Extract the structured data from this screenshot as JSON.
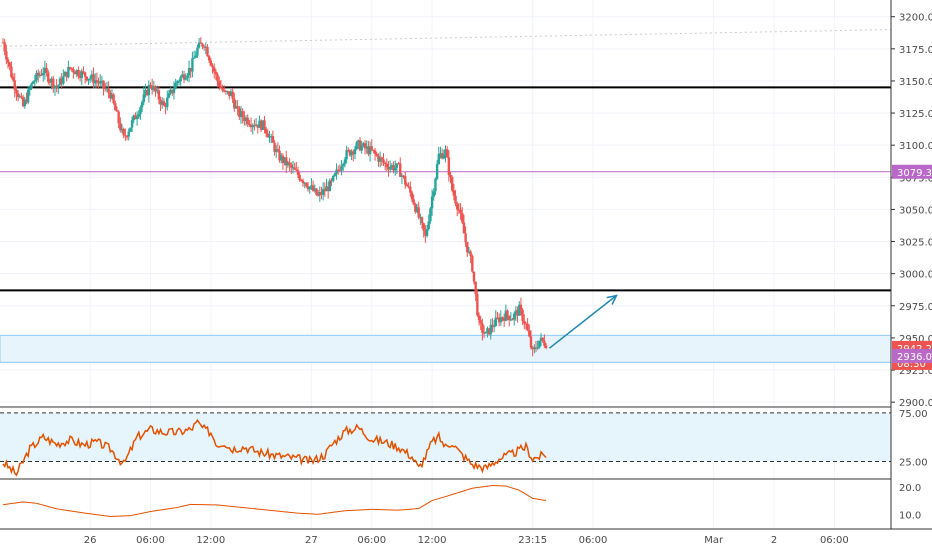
{
  "chart_data": {
    "type": "candlestick",
    "price_pane": {
      "yaxis_ticks": [
        2900,
        2925,
        2950,
        2975,
        3000,
        3025,
        3050,
        3075,
        3100,
        3125,
        3150,
        3175,
        3200
      ],
      "ytick_labels": [
        "2900.0",
        "2925.0",
        "2950.0",
        "2975.0",
        "3000.0",
        "3025.0",
        "3050.0",
        "3075.0",
        "3100.0",
        "3125.0",
        "3150.0",
        "3175.0",
        "3200.0"
      ],
      "ylim": [
        2897,
        3213
      ],
      "horizontal_lines": [
        {
          "value": 3145,
          "color": "#000000",
          "style": "solid"
        },
        {
          "value": 2987,
          "color": "#000000",
          "style": "solid"
        },
        {
          "value": 3079.3,
          "color": "#ba68c8",
          "style": "solid"
        }
      ],
      "support_zone": {
        "from": 2931,
        "to": 2952,
        "color": "#e8f4fb"
      },
      "price_badges": [
        {
          "label": "3079.3",
          "value": 3079.3,
          "color": "#ba68c8"
        },
        {
          "label": "2942.2",
          "value": 2942.2,
          "color": "#ef5350"
        },
        {
          "label": "08:30",
          "value": 2930.5,
          "color": "#ef5350"
        },
        {
          "label": "2936.0",
          "value": 2936.0,
          "color": "#ba68c8"
        }
      ],
      "trend_dotted_line": {
        "from_value": 3177,
        "to_value": 3190
      },
      "arrow": {
        "from": [
          163,
          2942
        ],
        "to": [
          183,
          2983
        ],
        "color": "#1e88b6"
      },
      "ohlc_anchors": [
        [
          0,
          3180
        ],
        [
          3,
          3150
        ],
        [
          6,
          3130
        ],
        [
          9,
          3150
        ],
        [
          12,
          3158
        ],
        [
          16,
          3145
        ],
        [
          20,
          3160
        ],
        [
          24,
          3155
        ],
        [
          28,
          3150
        ],
        [
          32,
          3140
        ],
        [
          36,
          3105
        ],
        [
          40,
          3125
        ],
        [
          44,
          3148
        ],
        [
          48,
          3130
        ],
        [
          52,
          3150
        ],
        [
          56,
          3160
        ],
        [
          58,
          3175
        ],
        [
          60,
          3180
        ],
        [
          62,
          3165
        ],
        [
          64,
          3150
        ],
        [
          66,
          3140
        ],
        [
          68,
          3140
        ],
        [
          70,
          3125
        ],
        [
          74,
          3118
        ],
        [
          78,
          3115
        ],
        [
          82,
          3092
        ],
        [
          86,
          3082
        ],
        [
          90,
          3072
        ],
        [
          94,
          3060
        ],
        [
          98,
          3070
        ],
        [
          102,
          3092
        ],
        [
          106,
          3100
        ],
        [
          110,
          3095
        ],
        [
          114,
          3085
        ],
        [
          118,
          3082
        ],
        [
          122,
          3060
        ],
        [
          126,
          3028
        ],
        [
          128,
          3060
        ],
        [
          130,
          3092
        ],
        [
          132,
          3095
        ],
        [
          134,
          3065
        ],
        [
          136,
          3050
        ],
        [
          138,
          3025
        ],
        [
          140,
          3005
        ],
        [
          142,
          2960
        ],
        [
          144,
          2952
        ],
        [
          146,
          2960
        ],
        [
          148,
          2965
        ],
        [
          150,
          2968
        ],
        [
          152,
          2966
        ],
        [
          154,
          2972
        ],
        [
          156,
          2960
        ],
        [
          158,
          2938
        ],
        [
          160,
          2948
        ],
        [
          162,
          2946
        ]
      ]
    },
    "rsi_pane": {
      "yaxis_ticks": [
        25,
        75
      ],
      "ytick_labels": [
        "25.00",
        "75.00"
      ],
      "ylim": [
        8,
        80
      ],
      "band": {
        "from": 25,
        "to": 75,
        "color": "#e6f5fb"
      },
      "color": "#e65100",
      "anchors": [
        [
          0,
          24
        ],
        [
          4,
          12
        ],
        [
          8,
          38
        ],
        [
          12,
          50
        ],
        [
          16,
          43
        ],
        [
          20,
          47
        ],
        [
          24,
          42
        ],
        [
          28,
          45
        ],
        [
          32,
          38
        ],
        [
          36,
          22
        ],
        [
          40,
          50
        ],
        [
          44,
          58
        ],
        [
          48,
          55
        ],
        [
          52,
          55
        ],
        [
          56,
          58
        ],
        [
          58,
          65
        ],
        [
          60,
          58
        ],
        [
          62,
          55
        ],
        [
          64,
          42
        ],
        [
          66,
          45
        ],
        [
          68,
          38
        ],
        [
          72,
          40
        ],
        [
          76,
          35
        ],
        [
          80,
          32
        ],
        [
          84,
          30
        ],
        [
          88,
          28
        ],
        [
          92,
          25
        ],
        [
          96,
          32
        ],
        [
          98,
          42
        ],
        [
          102,
          56
        ],
        [
          106,
          60
        ],
        [
          110,
          48
        ],
        [
          114,
          45
        ],
        [
          118,
          40
        ],
        [
          122,
          30
        ],
        [
          124,
          18
        ],
        [
          126,
          30
        ],
        [
          128,
          45
        ],
        [
          130,
          50
        ],
        [
          132,
          40
        ],
        [
          134,
          45
        ],
        [
          136,
          35
        ],
        [
          140,
          22
        ],
        [
          144,
          18
        ],
        [
          148,
          28
        ],
        [
          152,
          33
        ],
        [
          156,
          40
        ],
        [
          158,
          28
        ],
        [
          160,
          30
        ],
        [
          162,
          32
        ]
      ]
    },
    "lower_pane": {
      "yaxis_ticks": [
        10,
        20
      ],
      "ytick_labels": [
        "10.0",
        "20.0"
      ],
      "ylim": [
        5,
        22.5
      ],
      "color": "#e65100",
      "anchors": [
        [
          0,
          13.5
        ],
        [
          6,
          14.5
        ],
        [
          10,
          14
        ],
        [
          16,
          12
        ],
        [
          24,
          10.5
        ],
        [
          32,
          9.2
        ],
        [
          38,
          9.5
        ],
        [
          44,
          11
        ],
        [
          52,
          12.5
        ],
        [
          56,
          13.6
        ],
        [
          64,
          13.4
        ],
        [
          72,
          12.4
        ],
        [
          80,
          11.4
        ],
        [
          88,
          10.4
        ],
        [
          94,
          10
        ],
        [
          102,
          11.3
        ],
        [
          110,
          11.8
        ],
        [
          118,
          11.5
        ],
        [
          124,
          12.1
        ],
        [
          128,
          15
        ],
        [
          134,
          17.2
        ],
        [
          140,
          19.5
        ],
        [
          146,
          20.5
        ],
        [
          150,
          20.3
        ],
        [
          154,
          18.8
        ],
        [
          158,
          15.8
        ],
        [
          162,
          15
        ]
      ]
    },
    "x_axis": {
      "ticks": [
        {
          "label": "26",
          "bar": 26
        },
        {
          "label": "06:00",
          "bar": 44
        },
        {
          "label": "12:00",
          "bar": 62
        },
        {
          "label": "27",
          "bar": 92
        },
        {
          "label": "06:00",
          "bar": 110
        },
        {
          "label": "12:00",
          "bar": 128
        },
        {
          "label": "23:15",
          "bar": 158
        },
        {
          "label": "06:00",
          "bar": 176
        },
        {
          "label": "Mar",
          "bar": 212
        },
        {
          "label": "2",
          "bar": 230
        },
        {
          "label": "06:00",
          "bar": 248
        }
      ],
      "bar_range": [
        0,
        264
      ]
    },
    "colors": {
      "up": "#26a69a",
      "down": "#ef5350",
      "grid": "#f0f3fa",
      "axis_text": "#4a4a4a"
    }
  }
}
